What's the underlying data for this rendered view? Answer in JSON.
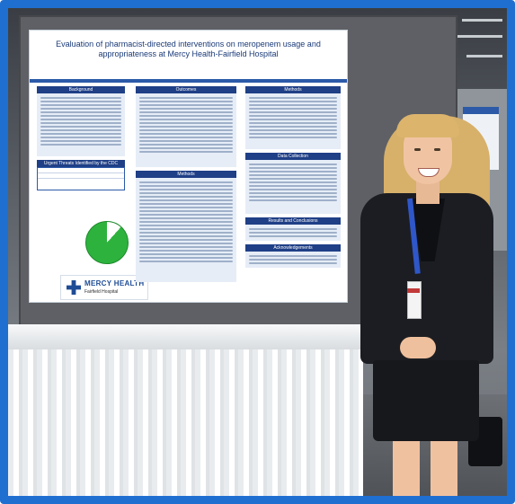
{
  "frame": {
    "border_color": "#1f6fd1"
  },
  "poster": {
    "title": "Evaluation of pharmacist-directed interventions on meropenem usage and appropriateness at Mercy Health-Fairfield Hospital",
    "sections": {
      "background": "Background",
      "outcomes": "Outcomes",
      "methods_1": "Methods",
      "methods_2": "Methods",
      "data_collection": "Data Collection",
      "results": "Results and Conclusions",
      "acknowledgements": "Acknowledgements",
      "threats": "Urgent Threats Identified by the CDC"
    },
    "logo": {
      "name": "MERCY HEALTH",
      "sub": "Fairfield Hospital"
    },
    "colors": {
      "header_band": "#2c5aa8",
      "section_header": "#1f3f86",
      "pie_green": "#2db33d"
    }
  }
}
